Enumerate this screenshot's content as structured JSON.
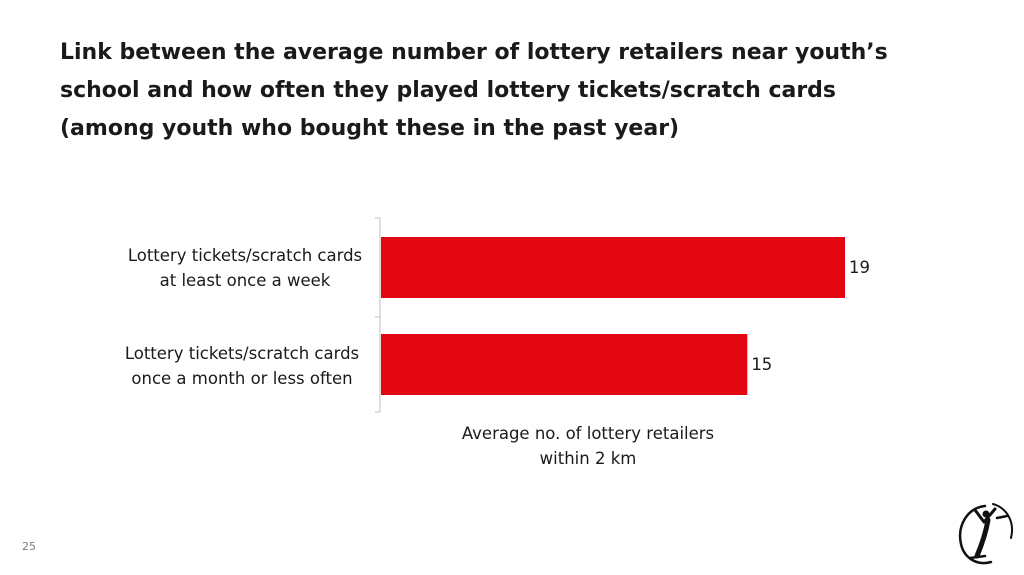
{
  "slide": {
    "title_lines": [
      "Link between the average number of lottery retailers near youth’s",
      "school and how often they played lottery tickets/scratch cards",
      "(among youth who bought these in the past year)"
    ],
    "page_number": "25",
    "logo_icon": "stylized-y-figure-logo-icon"
  },
  "chart_data": {
    "type": "bar",
    "orientation": "horizontal",
    "title": "Link between the average number of lottery retailers near youth’s school and how often they played lottery tickets/scratch cards (among youth who bought these in the past year)",
    "categories": [
      [
        "Lottery tickets/scratch cards",
        "at least once a week"
      ],
      [
        "Lottery tickets/scratch cards",
        "once a month or less often"
      ]
    ],
    "values": [
      19,
      15
    ],
    "value_labels": [
      "19",
      "15"
    ],
    "xlabel_lines": [
      "Average no. of lottery retailers",
      "within 2 km"
    ],
    "xlim": [
      0,
      20
    ],
    "bar_color": "#e30613",
    "grid": false,
    "legend": "none"
  }
}
